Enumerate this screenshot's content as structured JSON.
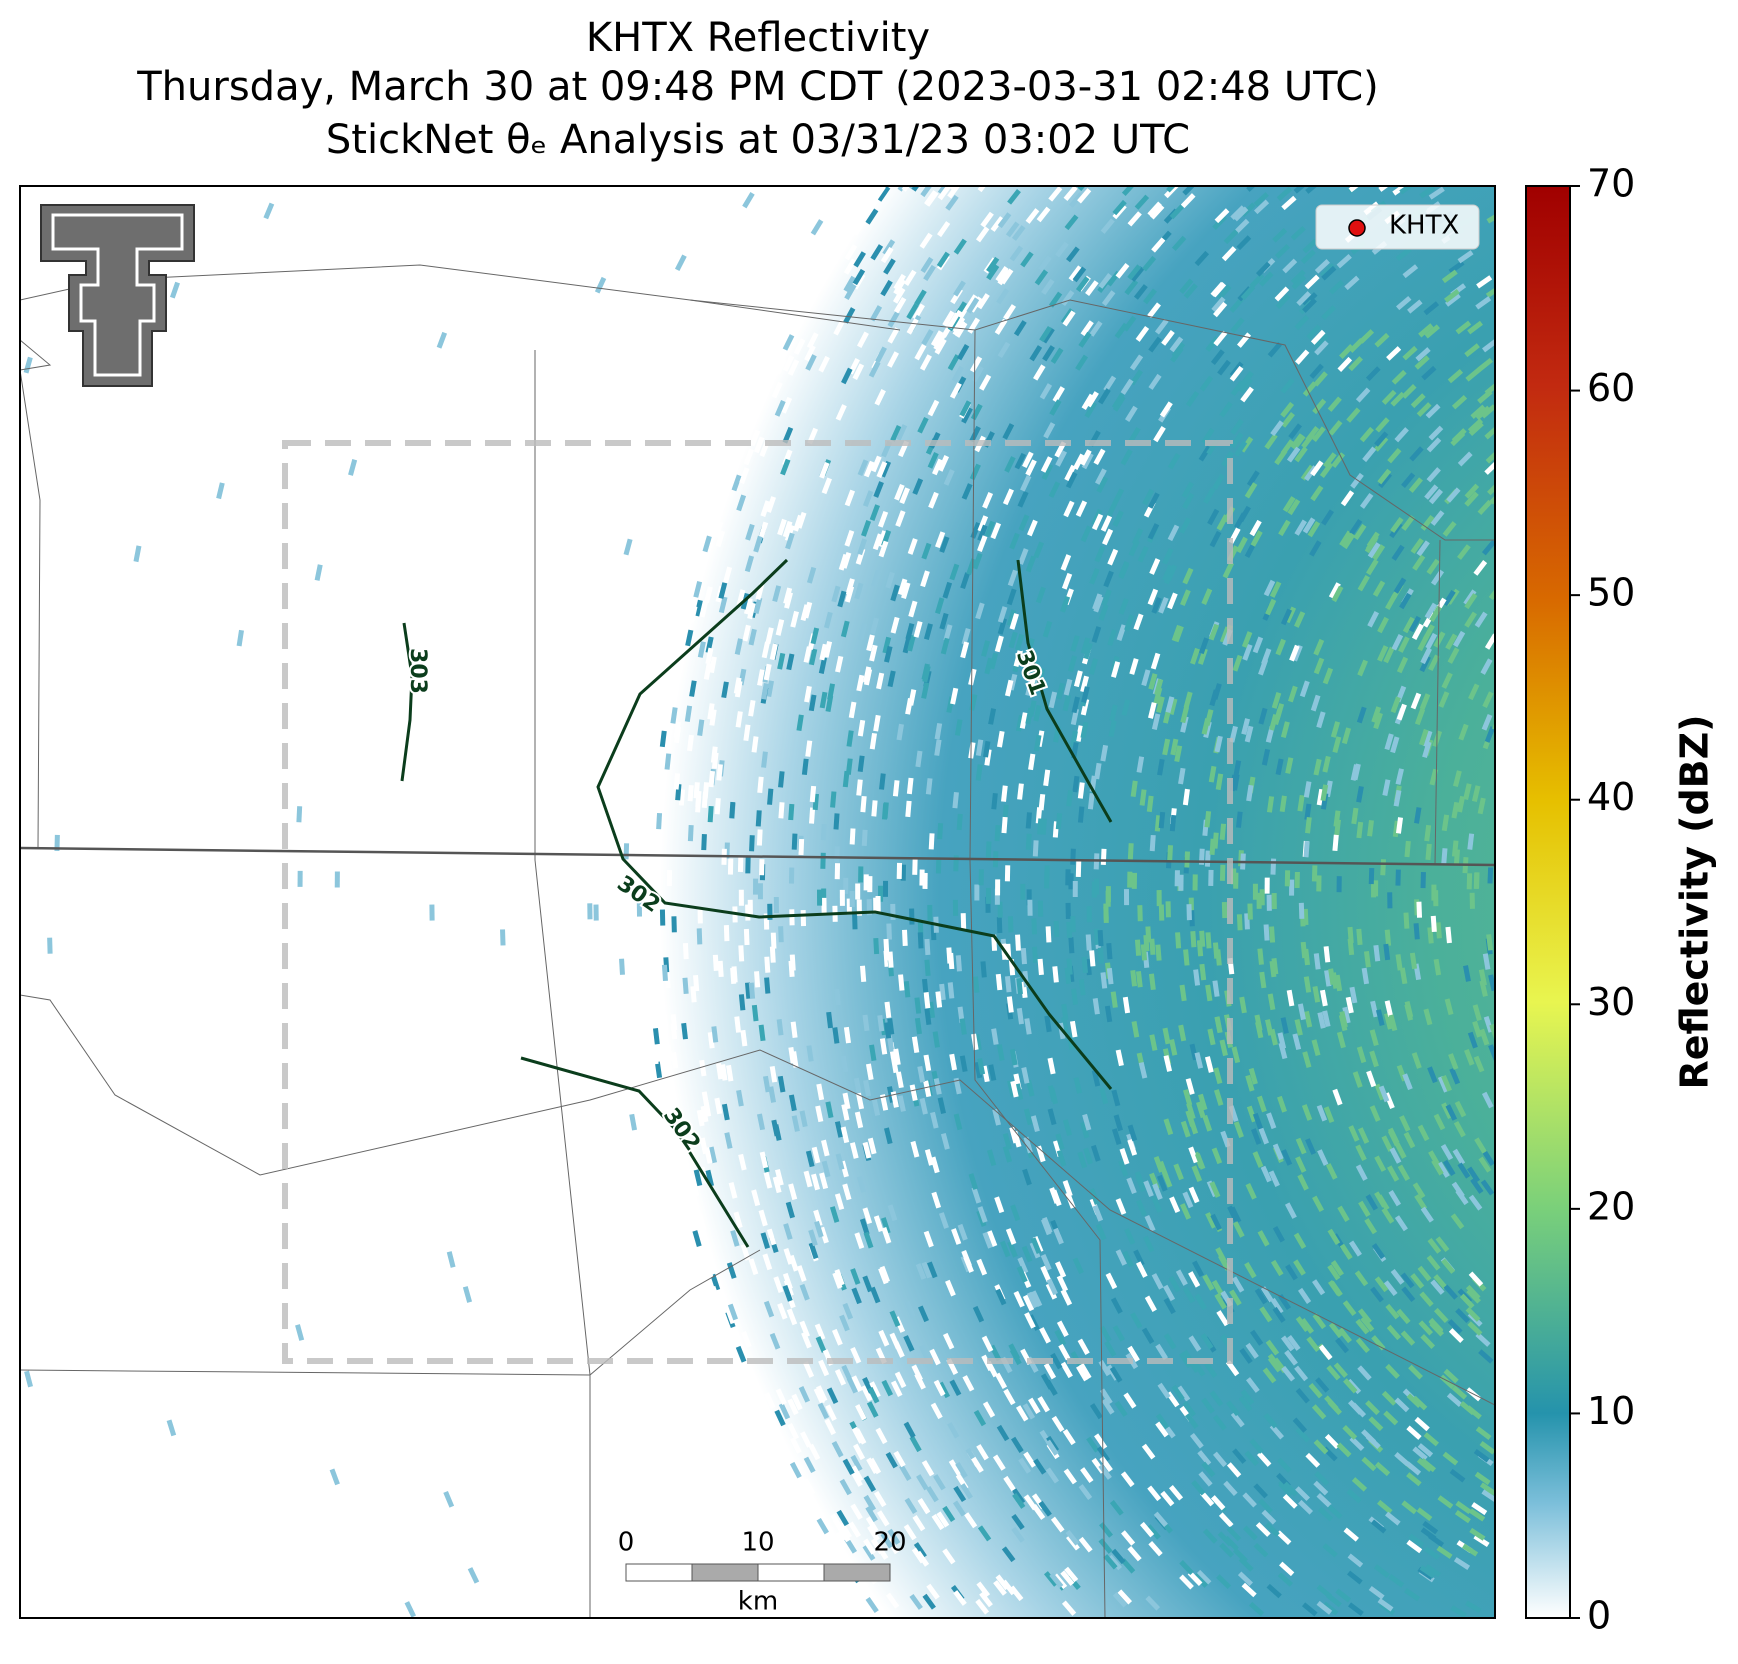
{
  "title": [
    "KHTX Reflectivity",
    "Thursday, March 30 at 09:48 PM CDT (2023-03-31 02:48 UTC)",
    "StickNet θₑ Analysis at 03/31/23 03:02 UTC"
  ],
  "colorbar": {
    "label": "Reflectivity (dBZ)",
    "lim": [
      0,
      70
    ],
    "ticks": [
      0,
      10,
      20,
      30,
      40,
      50,
      60,
      70
    ]
  },
  "legend": {
    "label": "KHTX"
  },
  "contours": [
    {
      "label": "303"
    },
    {
      "label": "302"
    },
    {
      "label": "301"
    },
    {
      "label": "302"
    }
  ],
  "scalebar": {
    "ticks": [
      0,
      10,
      20
    ],
    "unit": "km"
  }
}
